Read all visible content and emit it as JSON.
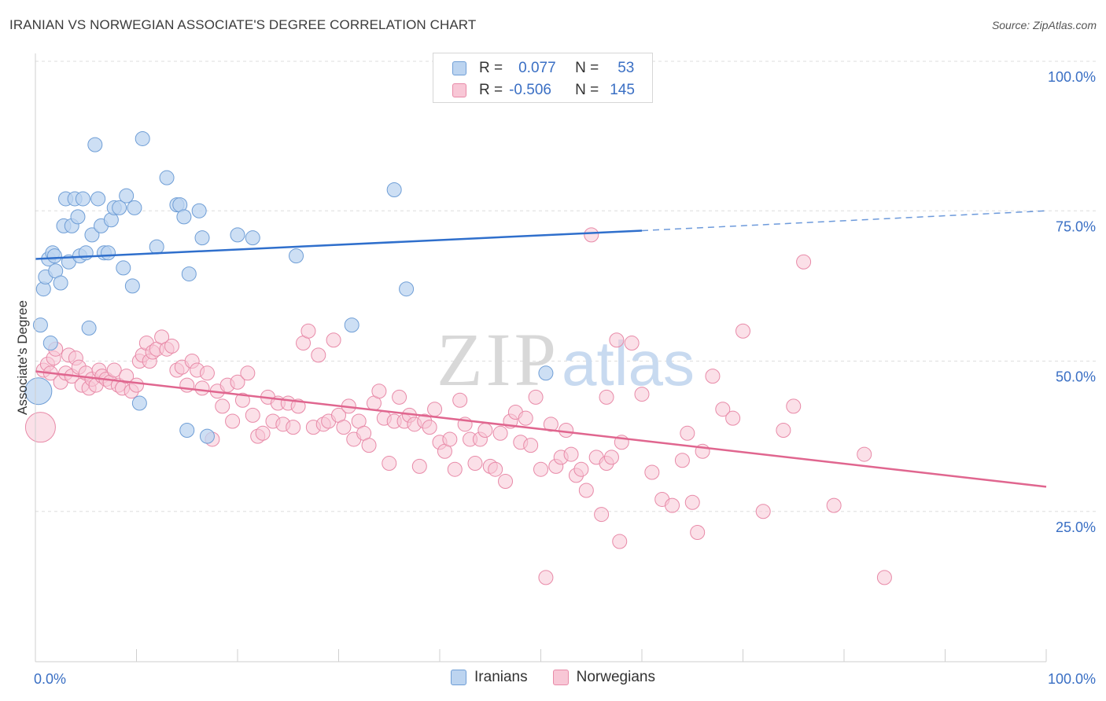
{
  "title": "IRANIAN VS NORWEGIAN ASSOCIATE'S DEGREE CORRELATION CHART",
  "source": "Source: ZipAtlas.com",
  "watermark": {
    "zip": "ZIP",
    "atlas": "atlas"
  },
  "legend": {
    "rows": [
      {
        "r_label": "R =",
        "r_value": "0.077",
        "n_label": "N =",
        "n_value": "53"
      },
      {
        "r_label": "R =",
        "r_value": "-0.506",
        "n_label": "N =",
        "n_value": "145"
      }
    ]
  },
  "bottom_legend": {
    "iranians": "Iranians",
    "norwegians": "Norwegians"
  },
  "colors": {
    "blue_fill": "#bcd4f0",
    "blue_stroke": "#6f9ed6",
    "blue_line": "#2f6fcc",
    "pink_fill": "#f8c7d6",
    "pink_stroke": "#e88aa8",
    "pink_line": "#e0668f",
    "tick_label": "#3a6fc4",
    "grid": "#dedede"
  },
  "chart_data": {
    "type": "scatter",
    "title": "IRANIAN VS NORWEGIAN ASSOCIATE'S DEGREE CORRELATION CHART",
    "xlabel": "",
    "ylabel": "Associate's Degree",
    "x_tick_labels": [
      "0.0%",
      "100.0%"
    ],
    "y_tick_labels": [
      "25.0%",
      "50.0%",
      "75.0%",
      "100.0%"
    ],
    "xlim": [
      0,
      100
    ],
    "ylim": [
      0,
      100
    ],
    "grid": true,
    "legend_position": "top-center",
    "series": [
      {
        "name": "Iranians",
        "r": 0.077,
        "n": 53,
        "trend": {
          "x0": 0,
          "y0": 67,
          "x1": 60,
          "y1": 71.7,
          "dashed_to_x": 100,
          "dashed_to_y": 75
        },
        "points": [
          [
            0.3,
            45
          ],
          [
            0.5,
            56
          ],
          [
            0.8,
            62
          ],
          [
            1.0,
            64
          ],
          [
            1.3,
            67
          ],
          [
            1.5,
            53
          ],
          [
            1.7,
            68
          ],
          [
            1.9,
            67.5
          ],
          [
            2.0,
            65
          ],
          [
            2.5,
            63
          ],
          [
            2.8,
            72.5
          ],
          [
            3.0,
            77
          ],
          [
            3.3,
            66.5
          ],
          [
            3.6,
            72.5
          ],
          [
            3.9,
            77
          ],
          [
            4.2,
            74
          ],
          [
            4.4,
            67.5
          ],
          [
            4.7,
            77
          ],
          [
            5.0,
            68
          ],
          [
            5.3,
            55.5
          ],
          [
            5.6,
            71
          ],
          [
            5.9,
            86
          ],
          [
            6.2,
            77
          ],
          [
            6.5,
            72.5
          ],
          [
            6.8,
            68
          ],
          [
            7.2,
            68
          ],
          [
            7.5,
            73.5
          ],
          [
            7.8,
            75.5
          ],
          [
            8.3,
            75.5
          ],
          [
            8.7,
            65.5
          ],
          [
            9.0,
            77.5
          ],
          [
            9.8,
            75.5
          ],
          [
            9.6,
            62.5
          ],
          [
            10.3,
            43
          ],
          [
            10.6,
            87
          ],
          [
            12.0,
            69
          ],
          [
            13.0,
            80.5
          ],
          [
            14.0,
            76
          ],
          [
            14.3,
            76
          ],
          [
            14.7,
            74
          ],
          [
            15.0,
            38.5
          ],
          [
            15.2,
            64.5
          ],
          [
            16.2,
            75
          ],
          [
            16.5,
            70.5
          ],
          [
            17.0,
            37.5
          ],
          [
            20.0,
            71
          ],
          [
            21.5,
            70.5
          ],
          [
            25.8,
            67.5
          ],
          [
            31.3,
            56
          ],
          [
            35.5,
            78.5
          ],
          [
            36.7,
            62
          ],
          [
            50.5,
            48
          ],
          [
            54.2,
            100
          ]
        ]
      },
      {
        "name": "Norwegians",
        "r": -0.506,
        "n": 145,
        "trend": {
          "x0": 0,
          "y0": 48.3,
          "x1": 100,
          "y1": 29.1
        },
        "points": [
          [
            0.5,
            39
          ],
          [
            0.8,
            48.5
          ],
          [
            1.2,
            49.5
          ],
          [
            1.5,
            48
          ],
          [
            1.8,
            50.5
          ],
          [
            2.0,
            52
          ],
          [
            2.5,
            46.5
          ],
          [
            3.0,
            48
          ],
          [
            3.3,
            51
          ],
          [
            3.6,
            47.5
          ],
          [
            4.0,
            50.5
          ],
          [
            4.3,
            49
          ],
          [
            4.6,
            46
          ],
          [
            5.0,
            48
          ],
          [
            5.3,
            45.5
          ],
          [
            5.6,
            47
          ],
          [
            6.0,
            46
          ],
          [
            6.3,
            48.5
          ],
          [
            6.6,
            47.5
          ],
          [
            7.0,
            47
          ],
          [
            7.4,
            46.5
          ],
          [
            7.8,
            48.5
          ],
          [
            8.2,
            46
          ],
          [
            8.6,
            45.5
          ],
          [
            9.0,
            47.5
          ],
          [
            9.5,
            45
          ],
          [
            10.0,
            46
          ],
          [
            10.3,
            50
          ],
          [
            10.6,
            51
          ],
          [
            11.0,
            53
          ],
          [
            11.3,
            50
          ],
          [
            11.6,
            51.5
          ],
          [
            12.0,
            52
          ],
          [
            12.5,
            54
          ],
          [
            13.0,
            52
          ],
          [
            13.5,
            52.5
          ],
          [
            14.0,
            48.5
          ],
          [
            14.5,
            49
          ],
          [
            15.0,
            46
          ],
          [
            15.5,
            50
          ],
          [
            16.0,
            48.5
          ],
          [
            16.5,
            45.5
          ],
          [
            17.0,
            48
          ],
          [
            17.5,
            37
          ],
          [
            18.0,
            45
          ],
          [
            18.5,
            42.5
          ],
          [
            19.0,
            46
          ],
          [
            19.5,
            40
          ],
          [
            20.0,
            46.5
          ],
          [
            20.5,
            43.5
          ],
          [
            21.0,
            48
          ],
          [
            21.5,
            41
          ],
          [
            22.0,
            37.5
          ],
          [
            22.5,
            38
          ],
          [
            23.0,
            44
          ],
          [
            23.5,
            40
          ],
          [
            24.0,
            43
          ],
          [
            24.5,
            39.5
          ],
          [
            25.0,
            43
          ],
          [
            25.5,
            39
          ],
          [
            26.0,
            42.5
          ],
          [
            26.5,
            53
          ],
          [
            27.0,
            55
          ],
          [
            27.5,
            39
          ],
          [
            28.0,
            51
          ],
          [
            28.5,
            39.5
          ],
          [
            29.0,
            40
          ],
          [
            29.5,
            53.5
          ],
          [
            30.0,
            41
          ],
          [
            30.5,
            39
          ],
          [
            31.0,
            42.5
          ],
          [
            31.5,
            37
          ],
          [
            32.0,
            40
          ],
          [
            32.5,
            38
          ],
          [
            33.0,
            36
          ],
          [
            33.5,
            43
          ],
          [
            34.0,
            45
          ],
          [
            34.5,
            40.5
          ],
          [
            35.0,
            33
          ],
          [
            35.5,
            40
          ],
          [
            36.0,
            44
          ],
          [
            36.5,
            40
          ],
          [
            37.0,
            41
          ],
          [
            37.5,
            39.5
          ],
          [
            38.0,
            32.5
          ],
          [
            38.5,
            40
          ],
          [
            39.0,
            39
          ],
          [
            39.5,
            42
          ],
          [
            40.0,
            36.5
          ],
          [
            40.5,
            35
          ],
          [
            41.0,
            37
          ],
          [
            41.5,
            32
          ],
          [
            42.0,
            43.5
          ],
          [
            42.5,
            39.5
          ],
          [
            43.0,
            37
          ],
          [
            43.5,
            33
          ],
          [
            44.0,
            37
          ],
          [
            44.5,
            38.5
          ],
          [
            45.0,
            32.5
          ],
          [
            45.5,
            32
          ],
          [
            46.0,
            38
          ],
          [
            46.5,
            30
          ],
          [
            47.0,
            40
          ],
          [
            47.5,
            41.5
          ],
          [
            48.0,
            36.5
          ],
          [
            48.5,
            40.5
          ],
          [
            49.0,
            36
          ],
          [
            49.5,
            44
          ],
          [
            50.0,
            32
          ],
          [
            50.5,
            14
          ],
          [
            51.0,
            39.5
          ],
          [
            51.5,
            32.5
          ],
          [
            52.0,
            34
          ],
          [
            52.5,
            38.5
          ],
          [
            53.0,
            34.5
          ],
          [
            53.5,
            31
          ],
          [
            54.0,
            32
          ],
          [
            54.5,
            28.5
          ],
          [
            55.0,
            71
          ],
          [
            55.5,
            34
          ],
          [
            56.0,
            24.5
          ],
          [
            56.5,
            33
          ],
          [
            57.0,
            34
          ],
          [
            57.5,
            53.5
          ],
          [
            58.0,
            36.5
          ],
          [
            59.0,
            53
          ],
          [
            60.0,
            44.5
          ],
          [
            61.0,
            31.5
          ],
          [
            62.0,
            27
          ],
          [
            63.0,
            26
          ],
          [
            64.0,
            33.5
          ],
          [
            64.5,
            38
          ],
          [
            65.0,
            26.5
          ],
          [
            65.5,
            21.5
          ],
          [
            66.0,
            35
          ],
          [
            67.0,
            47.5
          ],
          [
            68.0,
            42
          ],
          [
            69.0,
            40.5
          ],
          [
            70.0,
            55
          ],
          [
            72.0,
            25
          ],
          [
            74.0,
            38.5
          ],
          [
            75.0,
            42.5
          ],
          [
            76.0,
            66.5
          ],
          [
            79.0,
            26
          ],
          [
            82.0,
            34.5
          ],
          [
            84.0,
            14
          ],
          [
            57.8,
            20
          ],
          [
            56.5,
            44
          ]
        ]
      }
    ]
  }
}
